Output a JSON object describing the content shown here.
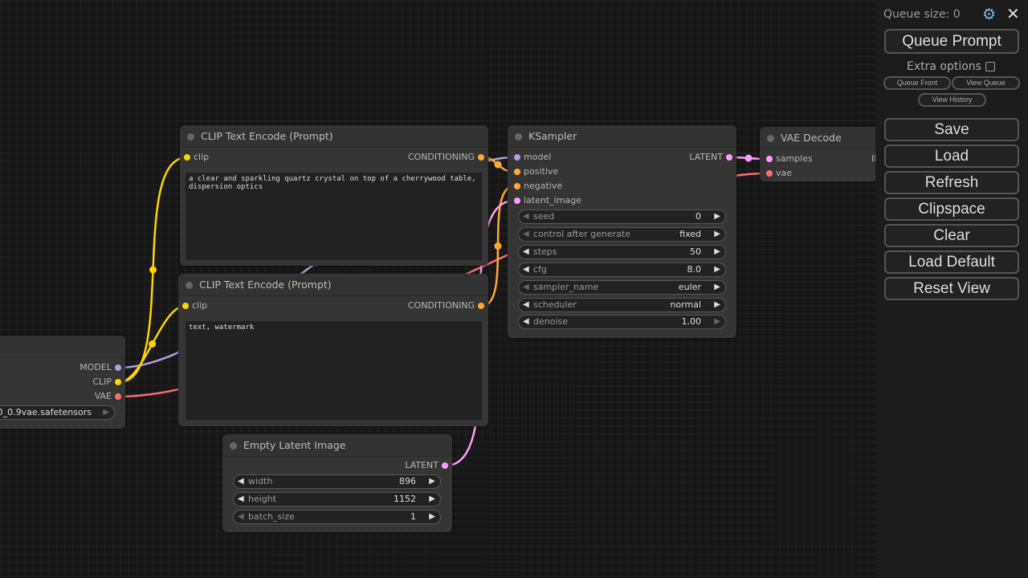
{
  "colors": {
    "model": "#b39ddb",
    "clip": "#ffd500",
    "vae": "#ff6e6e",
    "conditioning": "#ffa931",
    "latent": "#ff9cf9"
  },
  "checkpoint_node": {
    "outputs": [
      "MODEL",
      "CLIP",
      "VAE"
    ],
    "ckpt_name": ".0_0.9vae.safetensors"
  },
  "clip_pos": {
    "title": "CLIP Text Encode (Prompt)",
    "input": "clip",
    "output": "CONDITIONING",
    "text": "a clear and sparkling quartz crystal on top of a cherrywood table,\ndispersion optics"
  },
  "clip_neg": {
    "title": "CLIP Text Encode (Prompt)",
    "input": "clip",
    "output": "CONDITIONING",
    "text": "text, watermark"
  },
  "ksampler": {
    "title": "KSampler",
    "inputs": [
      "model",
      "positive",
      "negative",
      "latent_image"
    ],
    "output": "LATENT",
    "widgets": [
      {
        "label": "seed",
        "value": "0",
        "left_disabled": true,
        "right_disabled": false
      },
      {
        "label": "control after generate",
        "value": "fixed",
        "left_disabled": true,
        "right_disabled": false
      },
      {
        "label": "steps",
        "value": "50",
        "left_disabled": false,
        "right_disabled": false
      },
      {
        "label": "cfg",
        "value": "8.0",
        "left_disabled": false,
        "right_disabled": false
      },
      {
        "label": "sampler_name",
        "value": "euler",
        "left_disabled": true,
        "right_disabled": false
      },
      {
        "label": "scheduler",
        "value": "normal",
        "left_disabled": false,
        "right_disabled": false
      },
      {
        "label": "denoise",
        "value": "1.00",
        "left_disabled": false,
        "right_disabled": true
      }
    ]
  },
  "vae_decode": {
    "title": "VAE Decode",
    "inputs": [
      "samples",
      "vae"
    ],
    "output_partial": "IM"
  },
  "empty_latent": {
    "title": "Empty Latent Image",
    "output": "LATENT",
    "widgets": [
      {
        "label": "width",
        "value": "896",
        "left_disabled": false,
        "right_disabled": false
      },
      {
        "label": "height",
        "value": "1152",
        "left_disabled": false,
        "right_disabled": false
      },
      {
        "label": "batch_size",
        "value": "1",
        "left_disabled": true,
        "right_disabled": false
      }
    ]
  },
  "panel": {
    "queue_size": "Queue size: 0",
    "queue_prompt": "Queue Prompt",
    "extra_options": "Extra options",
    "extra_checked": false,
    "queue_front": "Queue Front",
    "view_queue": "View Queue",
    "view_history": "View History",
    "buttons": [
      "Save",
      "Load",
      "Refresh",
      "Clipspace",
      "Clear",
      "Load Default",
      "Reset View"
    ]
  }
}
